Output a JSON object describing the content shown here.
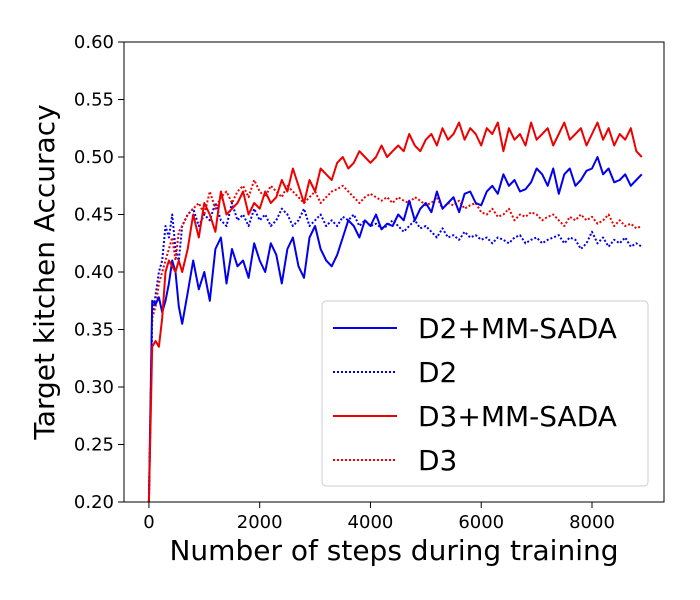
{
  "chart_data": {
    "type": "line",
    "title": "",
    "xlabel": "Number of steps during training",
    "ylabel": "Target kitchen Accuracy",
    "xlim": [
      -450,
      9300
    ],
    "ylim": [
      0.2,
      0.6
    ],
    "xticks": [
      0,
      2000,
      4000,
      6000,
      8000
    ],
    "xtick_labels": [
      "0",
      "2000",
      "4000",
      "6000",
      "8000"
    ],
    "yticks": [
      0.2,
      0.25,
      0.3,
      0.35,
      0.4,
      0.45,
      0.5,
      0.55,
      0.6
    ],
    "ytick_labels": [
      "0.20",
      "0.25",
      "0.30",
      "0.35",
      "0.40",
      "0.45",
      "0.50",
      "0.55",
      "0.60"
    ],
    "legend_position": "lower-right",
    "series": [
      {
        "name": "D2+MM-SADA",
        "color": "#0000ee",
        "style": "solid",
        "x": [
          0,
          60,
          120,
          180,
          240,
          300,
          360,
          420,
          480,
          540,
          600,
          700,
          800,
          900,
          1000,
          1100,
          1200,
          1300,
          1400,
          1500,
          1600,
          1700,
          1800,
          1900,
          2000,
          2100,
          2200,
          2300,
          2400,
          2500,
          2600,
          2700,
          2800,
          2900,
          3000,
          3100,
          3200,
          3300,
          3400,
          3500,
          3600,
          3700,
          3800,
          3900,
          4000,
          4100,
          4200,
          4300,
          4400,
          4500,
          4600,
          4700,
          4800,
          4900,
          5000,
          5100,
          5200,
          5300,
          5400,
          5500,
          5600,
          5700,
          5800,
          5900,
          6000,
          6100,
          6200,
          6300,
          6400,
          6500,
          6600,
          6700,
          6800,
          6900,
          7000,
          7100,
          7200,
          7300,
          7400,
          7500,
          7600,
          7700,
          7800,
          7900,
          8000,
          8100,
          8200,
          8300,
          8400,
          8500,
          8600,
          8700,
          8800,
          8900
        ],
        "y": [
          0.2,
          0.375,
          0.372,
          0.378,
          0.365,
          0.375,
          0.39,
          0.41,
          0.4,
          0.37,
          0.355,
          0.382,
          0.41,
          0.385,
          0.4,
          0.375,
          0.42,
          0.43,
          0.39,
          0.42,
          0.405,
          0.41,
          0.395,
          0.425,
          0.41,
          0.4,
          0.425,
          0.415,
          0.39,
          0.42,
          0.43,
          0.405,
          0.395,
          0.43,
          0.44,
          0.42,
          0.41,
          0.405,
          0.415,
          0.43,
          0.445,
          0.44,
          0.43,
          0.445,
          0.44,
          0.45,
          0.437,
          0.442,
          0.44,
          0.45,
          0.445,
          0.462,
          0.445,
          0.455,
          0.46,
          0.452,
          0.47,
          0.455,
          0.46,
          0.465,
          0.452,
          0.468,
          0.47,
          0.46,
          0.458,
          0.47,
          0.475,
          0.468,
          0.485,
          0.475,
          0.48,
          0.47,
          0.472,
          0.478,
          0.49,
          0.485,
          0.475,
          0.49,
          0.468,
          0.485,
          0.49,
          0.475,
          0.48,
          0.488,
          0.49,
          0.5,
          0.485,
          0.49,
          0.478,
          0.48,
          0.485,
          0.475,
          0.48,
          0.485
        ]
      },
      {
        "name": "D2",
        "color": "#0000ee",
        "style": "dotted",
        "x": [
          0,
          60,
          120,
          180,
          240,
          300,
          360,
          420,
          480,
          540,
          600,
          700,
          800,
          900,
          1000,
          1100,
          1200,
          1300,
          1400,
          1500,
          1600,
          1700,
          1800,
          1900,
          2000,
          2100,
          2200,
          2300,
          2400,
          2500,
          2600,
          2700,
          2800,
          2900,
          3000,
          3100,
          3200,
          3300,
          3400,
          3500,
          3600,
          3700,
          3800,
          3900,
          4000,
          4100,
          4200,
          4300,
          4400,
          4500,
          4600,
          4700,
          4800,
          4900,
          5000,
          5100,
          5200,
          5300,
          5400,
          5500,
          5600,
          5700,
          5800,
          5900,
          6000,
          6100,
          6200,
          6300,
          6400,
          6500,
          6600,
          6700,
          6800,
          6900,
          7000,
          7100,
          7200,
          7300,
          7400,
          7500,
          7600,
          7700,
          7800,
          7900,
          8000,
          8100,
          8200,
          8300,
          8400,
          8500,
          8600,
          8700,
          8800,
          8900
        ],
        "y": [
          0.2,
          0.36,
          0.38,
          0.4,
          0.41,
          0.44,
          0.43,
          0.45,
          0.42,
          0.41,
          0.44,
          0.45,
          0.455,
          0.44,
          0.45,
          0.445,
          0.46,
          0.445,
          0.44,
          0.46,
          0.445,
          0.45,
          0.44,
          0.455,
          0.445,
          0.45,
          0.44,
          0.445,
          0.455,
          0.45,
          0.44,
          0.445,
          0.455,
          0.44,
          0.445,
          0.45,
          0.44,
          0.445,
          0.44,
          0.448,
          0.445,
          0.45,
          0.44,
          0.445,
          0.44,
          0.442,
          0.438,
          0.44,
          0.445,
          0.44,
          0.435,
          0.44,
          0.445,
          0.438,
          0.44,
          0.435,
          0.43,
          0.438,
          0.43,
          0.432,
          0.428,
          0.435,
          0.43,
          0.432,
          0.428,
          0.43,
          0.425,
          0.43,
          0.428,
          0.425,
          0.43,
          0.432,
          0.425,
          0.428,
          0.43,
          0.425,
          0.428,
          0.43,
          0.432,
          0.425,
          0.43,
          0.428,
          0.42,
          0.425,
          0.435,
          0.425,
          0.43,
          0.422,
          0.428,
          0.425,
          0.43,
          0.422,
          0.425,
          0.422
        ]
      },
      {
        "name": "D3+MM-SADA",
        "color": "#ee0000",
        "style": "solid",
        "x": [
          0,
          60,
          120,
          180,
          240,
          300,
          360,
          420,
          480,
          540,
          600,
          700,
          800,
          900,
          1000,
          1100,
          1200,
          1300,
          1400,
          1500,
          1600,
          1700,
          1800,
          1900,
          2000,
          2100,
          2200,
          2300,
          2400,
          2500,
          2600,
          2700,
          2800,
          2900,
          3000,
          3100,
          3200,
          3300,
          3400,
          3500,
          3600,
          3700,
          3800,
          3900,
          4000,
          4100,
          4200,
          4300,
          4400,
          4500,
          4600,
          4700,
          4800,
          4900,
          5000,
          5100,
          5200,
          5300,
          5400,
          5500,
          5600,
          5700,
          5800,
          5900,
          6000,
          6100,
          6200,
          6300,
          6400,
          6500,
          6600,
          6700,
          6800,
          6900,
          7000,
          7100,
          7200,
          7300,
          7400,
          7500,
          7600,
          7700,
          7800,
          7900,
          8000,
          8100,
          8200,
          8300,
          8400,
          8500,
          8600,
          8700,
          8800,
          8900
        ],
        "y": [
          0.2,
          0.335,
          0.34,
          0.335,
          0.36,
          0.4,
          0.41,
          0.405,
          0.4,
          0.41,
          0.4,
          0.42,
          0.45,
          0.43,
          0.46,
          0.45,
          0.435,
          0.47,
          0.45,
          0.455,
          0.46,
          0.47,
          0.45,
          0.46,
          0.455,
          0.47,
          0.46,
          0.465,
          0.48,
          0.47,
          0.49,
          0.475,
          0.46,
          0.48,
          0.47,
          0.49,
          0.485,
          0.48,
          0.495,
          0.5,
          0.49,
          0.495,
          0.505,
          0.5,
          0.495,
          0.5,
          0.51,
          0.5,
          0.505,
          0.51,
          0.505,
          0.52,
          0.51,
          0.505,
          0.515,
          0.52,
          0.51,
          0.525,
          0.515,
          0.52,
          0.53,
          0.515,
          0.525,
          0.52,
          0.51,
          0.525,
          0.52,
          0.53,
          0.505,
          0.525,
          0.515,
          0.52,
          0.51,
          0.53,
          0.515,
          0.52,
          0.525,
          0.51,
          0.52,
          0.53,
          0.515,
          0.52,
          0.525,
          0.51,
          0.52,
          0.53,
          0.515,
          0.525,
          0.51,
          0.52,
          0.515,
          0.525,
          0.505,
          0.5
        ]
      },
      {
        "name": "D3",
        "color": "#ee0000",
        "style": "dotted",
        "x": [
          0,
          60,
          120,
          180,
          240,
          300,
          360,
          420,
          480,
          540,
          600,
          700,
          800,
          900,
          1000,
          1100,
          1200,
          1300,
          1400,
          1500,
          1600,
          1700,
          1800,
          1900,
          2000,
          2100,
          2200,
          2300,
          2400,
          2500,
          2600,
          2700,
          2800,
          2900,
          3000,
          3100,
          3200,
          3300,
          3400,
          3500,
          3600,
          3700,
          3800,
          3900,
          4000,
          4100,
          4200,
          4300,
          4400,
          4500,
          4600,
          4700,
          4800,
          4900,
          5000,
          5100,
          5200,
          5300,
          5400,
          5500,
          5600,
          5700,
          5800,
          5900,
          6000,
          6100,
          6200,
          6300,
          6400,
          6500,
          6600,
          6700,
          6800,
          6900,
          7000,
          7100,
          7200,
          7300,
          7400,
          7500,
          7600,
          7700,
          7800,
          7900,
          8000,
          8100,
          8200,
          8300,
          8400,
          8500,
          8600,
          8700,
          8800,
          8900
        ],
        "y": [
          0.2,
          0.36,
          0.37,
          0.39,
          0.4,
          0.41,
          0.42,
          0.43,
          0.41,
          0.435,
          0.44,
          0.45,
          0.455,
          0.46,
          0.45,
          0.47,
          0.455,
          0.465,
          0.47,
          0.46,
          0.47,
          0.475,
          0.465,
          0.48,
          0.47,
          0.465,
          0.475,
          0.47,
          0.465,
          0.475,
          0.47,
          0.465,
          0.46,
          0.465,
          0.47,
          0.46,
          0.465,
          0.47,
          0.472,
          0.475,
          0.47,
          0.465,
          0.46,
          0.465,
          0.468,
          0.465,
          0.462,
          0.465,
          0.46,
          0.465,
          0.462,
          0.46,
          0.465,
          0.462,
          0.458,
          0.46,
          0.465,
          0.455,
          0.46,
          0.458,
          0.462,
          0.455,
          0.458,
          0.46,
          0.452,
          0.45,
          0.455,
          0.448,
          0.45,
          0.455,
          0.445,
          0.45,
          0.448,
          0.452,
          0.45,
          0.445,
          0.448,
          0.45,
          0.445,
          0.44,
          0.448,
          0.445,
          0.45,
          0.445,
          0.448,
          0.442,
          0.445,
          0.45,
          0.44,
          0.445,
          0.44,
          0.442,
          0.438,
          0.44
        ]
      }
    ]
  }
}
